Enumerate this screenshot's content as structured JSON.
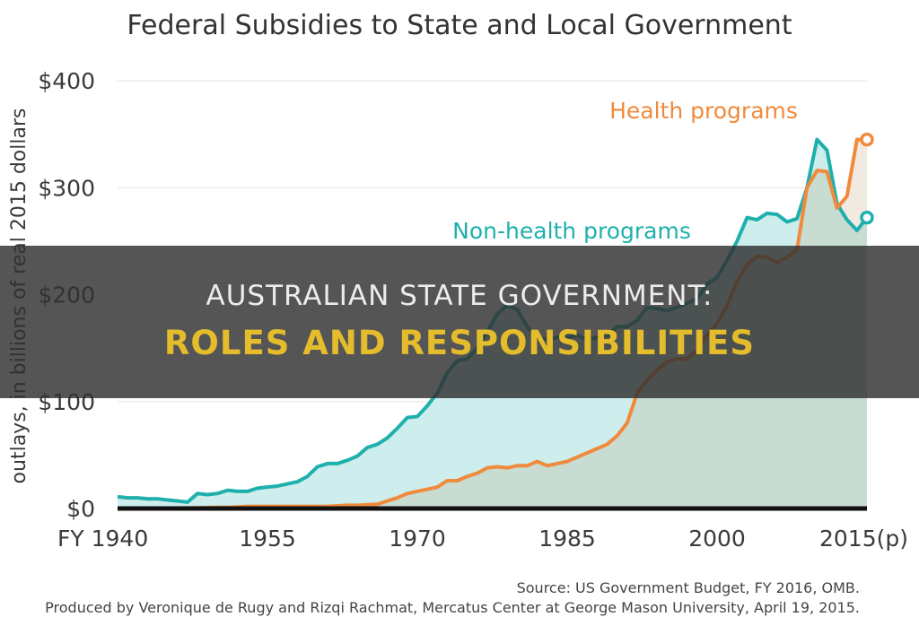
{
  "overlay": {
    "line1": "AUSTRALIAN STATE GOVERNMENT:",
    "line2": "ROLES AND RESPONSIBILITIES"
  },
  "footer": {
    "source": "Source: US Government Budget, FY 2016, OMB.",
    "credit": "Produced by Veronique de Rugy and Rizqi Rachmat, Mercatus Center at George Mason University, April 19, 2015."
  },
  "colors": {
    "health": "#f08a3c",
    "health_fill": "#efe6dc",
    "nonhealth": "#1fb0ad",
    "nonhealth_fill": "#cdeeec",
    "overlap_fill": "#c9dcd2",
    "grid": "#e6e6e6",
    "axis": "#111111"
  },
  "chart_data": {
    "type": "area",
    "title": "Federal Subsidies to State and Local Government",
    "ylabel": "outlays, in billions of real 2015 dollars",
    "xlabel": "",
    "ylim": [
      0,
      400
    ],
    "xlim": [
      1940,
      2015
    ],
    "grid": true,
    "y_ticks": [
      0,
      100,
      200,
      300,
      400
    ],
    "y_tick_labels": [
      "$0",
      "$100",
      "$200",
      "$300",
      "$400"
    ],
    "x_ticks": [
      1940,
      1955,
      1970,
      1985,
      2000,
      2015
    ],
    "x_tick_labels": [
      "FY 1940",
      "1955",
      "1970",
      "1985",
      "2000",
      "2015(p)"
    ],
    "series": [
      {
        "name": "Non-health programs",
        "color": "#1fb0ad",
        "x": [
          1940,
          1941,
          1942,
          1943,
          1944,
          1945,
          1946,
          1947,
          1948,
          1949,
          1950,
          1951,
          1952,
          1953,
          1954,
          1955,
          1956,
          1957,
          1958,
          1959,
          1960,
          1961,
          1962,
          1963,
          1964,
          1965,
          1966,
          1967,
          1968,
          1969,
          1970,
          1971,
          1972,
          1973,
          1974,
          1975,
          1976,
          1977,
          1978,
          1979,
          1980,
          1981,
          1982,
          1983,
          1984,
          1985,
          1986,
          1987,
          1988,
          1989,
          1990,
          1991,
          1992,
          1993,
          1994,
          1995,
          1996,
          1997,
          1998,
          1999,
          2000,
          2001,
          2002,
          2003,
          2004,
          2005,
          2006,
          2007,
          2008,
          2009,
          2010,
          2011,
          2012,
          2013,
          2014,
          2015
        ],
        "values": [
          11,
          10,
          10,
          9,
          9,
          8,
          7,
          6,
          14,
          13,
          14,
          17,
          16,
          16,
          19,
          20,
          21,
          23,
          25,
          30,
          39,
          42,
          42,
          45,
          49,
          57,
          60,
          66,
          75,
          85,
          86,
          96,
          108,
          127,
          138,
          140,
          150,
          165,
          182,
          190,
          186,
          170,
          160,
          158,
          160,
          160,
          162,
          158,
          160,
          162,
          170,
          170,
          176,
          188,
          187,
          185,
          188,
          192,
          196,
          210,
          216,
          232,
          250,
          272,
          270,
          276,
          275,
          268,
          271,
          300,
          345,
          335,
          285,
          270,
          260,
          272
        ]
      },
      {
        "name": "Health programs",
        "color": "#f08a3c",
        "x": [
          1940,
          1941,
          1942,
          1943,
          1944,
          1945,
          1946,
          1947,
          1948,
          1949,
          1950,
          1951,
          1952,
          1953,
          1954,
          1955,
          1956,
          1957,
          1958,
          1959,
          1960,
          1961,
          1962,
          1963,
          1964,
          1965,
          1966,
          1967,
          1968,
          1969,
          1970,
          1971,
          1972,
          1973,
          1974,
          1975,
          1976,
          1977,
          1978,
          1979,
          1980,
          1981,
          1982,
          1983,
          1984,
          1985,
          1986,
          1987,
          1988,
          1989,
          1990,
          1991,
          1992,
          1993,
          1994,
          1995,
          1996,
          1997,
          1998,
          1999,
          2000,
          2001,
          2002,
          2003,
          2004,
          2005,
          2006,
          2007,
          2008,
          2009,
          2010,
          2011,
          2012,
          2013,
          2014,
          2015
        ],
        "values": [
          0.3,
          0.3,
          0.3,
          0.3,
          0.3,
          0.3,
          0.4,
          0.5,
          0.6,
          0.8,
          1,
          1,
          1.5,
          2,
          2,
          2,
          2,
          2,
          2,
          2,
          2,
          2,
          2.5,
          3,
          3,
          3.5,
          4,
          7,
          10,
          14,
          16,
          18,
          20,
          26,
          26,
          30,
          33,
          38,
          39,
          38,
          40,
          40,
          44,
          40,
          42,
          44,
          48,
          52,
          56,
          60,
          68,
          80,
          108,
          120,
          130,
          137,
          140,
          140,
          148,
          162,
          173,
          190,
          212,
          228,
          236,
          235,
          230,
          235,
          242,
          300,
          316,
          315,
          281,
          292,
          345,
          345
        ]
      }
    ],
    "annotations": [
      "Health programs",
      "Non-health programs"
    ]
  }
}
